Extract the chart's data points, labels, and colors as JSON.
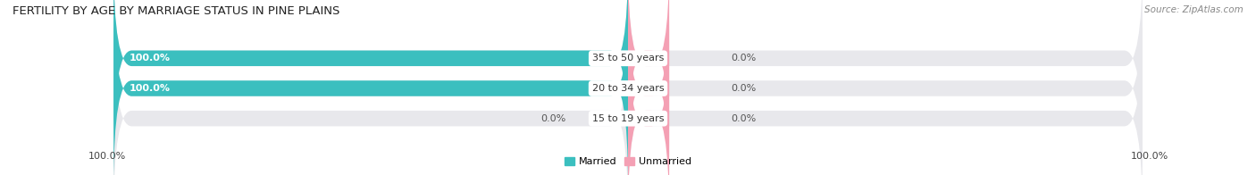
{
  "title": "FERTILITY BY AGE BY MARRIAGE STATUS IN PINE PLAINS",
  "source": "Source: ZipAtlas.com",
  "categories": [
    "15 to 19 years",
    "20 to 34 years",
    "35 to 50 years"
  ],
  "married_values": [
    0.0,
    100.0,
    100.0
  ],
  "unmarried_values": [
    0.0,
    0.0,
    0.0
  ],
  "married_color": "#3bbfbf",
  "unmarried_color": "#f4a0b4",
  "bar_bg_color": "#e8e8ec",
  "bar_height": 0.52,
  "title_fontsize": 9.5,
  "label_fontsize": 8,
  "tick_fontsize": 8,
  "source_fontsize": 7.5,
  "axis_label_left": "100.0%",
  "axis_label_right": "100.0%",
  "fig_bg_color": "#ffffff"
}
